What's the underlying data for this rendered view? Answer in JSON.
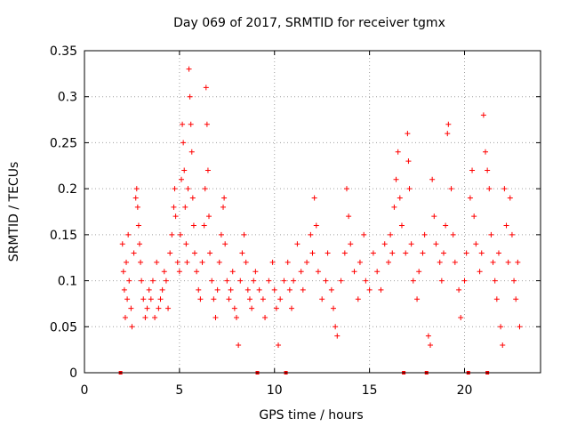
{
  "chart_data": {
    "type": "scatter",
    "title": "Day 069 of 2017, SRMTID for receiver tgmx",
    "xlabel": "GPS time / hours",
    "ylabel": "SRMTID / TECUs",
    "xlim": [
      0,
      24
    ],
    "ylim": [
      0,
      0.35
    ],
    "xticks": [
      0,
      5,
      10,
      15,
      20
    ],
    "xtick_labels": [
      "0",
      "5",
      "10",
      "15",
      "20"
    ],
    "yticks": [
      0,
      0.05,
      0.1,
      0.15,
      0.2,
      0.25,
      0.3,
      0.35
    ],
    "ytick_labels": [
      "0",
      "0.05",
      "0.1",
      "0.15",
      "0.2",
      "0.25",
      "0.3",
      "0.35"
    ],
    "grid": true,
    "marker": "+",
    "color": "#ff0000",
    "data_gap_markers_x": [
      1.9,
      9.1,
      10.6,
      16.8,
      18.0,
      20.2,
      21.2
    ],
    "series": [
      {
        "name": "SRMTID",
        "points": [
          [
            2.0,
            0.14
          ],
          [
            2.05,
            0.11
          ],
          [
            2.1,
            0.09
          ],
          [
            2.15,
            0.06
          ],
          [
            2.2,
            0.12
          ],
          [
            2.25,
            0.08
          ],
          [
            2.3,
            0.15
          ],
          [
            2.35,
            0.1
          ],
          [
            2.45,
            0.07
          ],
          [
            2.5,
            0.05
          ],
          [
            2.6,
            0.13
          ],
          [
            2.7,
            0.19
          ],
          [
            2.75,
            0.2
          ],
          [
            2.8,
            0.18
          ],
          [
            2.85,
            0.16
          ],
          [
            2.9,
            0.14
          ],
          [
            2.95,
            0.12
          ],
          [
            3.0,
            0.1
          ],
          [
            3.1,
            0.08
          ],
          [
            3.2,
            0.06
          ],
          [
            3.3,
            0.07
          ],
          [
            3.4,
            0.09
          ],
          [
            3.5,
            0.08
          ],
          [
            3.6,
            0.1
          ],
          [
            3.7,
            0.06
          ],
          [
            3.8,
            0.12
          ],
          [
            3.9,
            0.07
          ],
          [
            4.0,
            0.08
          ],
          [
            4.1,
            0.09
          ],
          [
            4.2,
            0.11
          ],
          [
            4.3,
            0.1
          ],
          [
            4.4,
            0.07
          ],
          [
            4.5,
            0.13
          ],
          [
            4.6,
            0.15
          ],
          [
            4.7,
            0.18
          ],
          [
            4.75,
            0.2
          ],
          [
            4.8,
            0.17
          ],
          [
            4.9,
            0.12
          ],
          [
            5.0,
            0.11
          ],
          [
            5.05,
            0.15
          ],
          [
            5.1,
            0.21
          ],
          [
            5.15,
            0.27
          ],
          [
            5.2,
            0.25
          ],
          [
            5.25,
            0.22
          ],
          [
            5.3,
            0.18
          ],
          [
            5.35,
            0.14
          ],
          [
            5.4,
            0.12
          ],
          [
            5.45,
            0.2
          ],
          [
            5.5,
            0.33
          ],
          [
            5.55,
            0.3
          ],
          [
            5.6,
            0.27
          ],
          [
            5.65,
            0.24
          ],
          [
            5.7,
            0.19
          ],
          [
            5.75,
            0.16
          ],
          [
            5.8,
            0.13
          ],
          [
            5.9,
            0.11
          ],
          [
            6.0,
            0.09
          ],
          [
            6.1,
            0.08
          ],
          [
            6.2,
            0.12
          ],
          [
            6.3,
            0.16
          ],
          [
            6.35,
            0.2
          ],
          [
            6.4,
            0.31
          ],
          [
            6.45,
            0.27
          ],
          [
            6.5,
            0.22
          ],
          [
            6.55,
            0.17
          ],
          [
            6.6,
            0.13
          ],
          [
            6.7,
            0.1
          ],
          [
            6.8,
            0.08
          ],
          [
            6.9,
            0.06
          ],
          [
            7.0,
            0.09
          ],
          [
            7.1,
            0.12
          ],
          [
            7.2,
            0.15
          ],
          [
            7.3,
            0.18
          ],
          [
            7.35,
            0.19
          ],
          [
            7.4,
            0.14
          ],
          [
            7.5,
            0.1
          ],
          [
            7.6,
            0.08
          ],
          [
            7.7,
            0.09
          ],
          [
            7.8,
            0.11
          ],
          [
            7.9,
            0.07
          ],
          [
            8.0,
            0.06
          ],
          [
            8.1,
            0.03
          ],
          [
            8.2,
            0.1
          ],
          [
            8.3,
            0.13
          ],
          [
            8.4,
            0.15
          ],
          [
            8.5,
            0.12
          ],
          [
            8.6,
            0.09
          ],
          [
            8.7,
            0.08
          ],
          [
            8.8,
            0.07
          ],
          [
            8.9,
            0.1
          ],
          [
            9.0,
            0.11
          ],
          [
            9.2,
            0.09
          ],
          [
            9.4,
            0.08
          ],
          [
            9.5,
            0.06
          ],
          [
            9.7,
            0.1
          ],
          [
            9.9,
            0.12
          ],
          [
            10.0,
            0.09
          ],
          [
            10.1,
            0.07
          ],
          [
            10.2,
            0.03
          ],
          [
            10.3,
            0.08
          ],
          [
            10.5,
            0.1
          ],
          [
            10.7,
            0.12
          ],
          [
            10.8,
            0.09
          ],
          [
            10.9,
            0.07
          ],
          [
            11.0,
            0.1
          ],
          [
            11.2,
            0.14
          ],
          [
            11.4,
            0.11
          ],
          [
            11.5,
            0.09
          ],
          [
            11.7,
            0.12
          ],
          [
            11.9,
            0.15
          ],
          [
            12.0,
            0.13
          ],
          [
            12.1,
            0.19
          ],
          [
            12.2,
            0.16
          ],
          [
            12.3,
            0.11
          ],
          [
            12.5,
            0.08
          ],
          [
            12.7,
            0.1
          ],
          [
            12.8,
            0.13
          ],
          [
            13.0,
            0.09
          ],
          [
            13.1,
            0.07
          ],
          [
            13.2,
            0.05
          ],
          [
            13.3,
            0.04
          ],
          [
            13.5,
            0.1
          ],
          [
            13.7,
            0.13
          ],
          [
            13.8,
            0.2
          ],
          [
            13.9,
            0.17
          ],
          [
            14.0,
            0.14
          ],
          [
            14.2,
            0.11
          ],
          [
            14.4,
            0.08
          ],
          [
            14.5,
            0.12
          ],
          [
            14.7,
            0.15
          ],
          [
            14.8,
            0.1
          ],
          [
            15.0,
            0.09
          ],
          [
            15.2,
            0.13
          ],
          [
            15.4,
            0.11
          ],
          [
            15.6,
            0.09
          ],
          [
            15.8,
            0.14
          ],
          [
            16.0,
            0.12
          ],
          [
            16.1,
            0.15
          ],
          [
            16.2,
            0.13
          ],
          [
            16.3,
            0.18
          ],
          [
            16.4,
            0.21
          ],
          [
            16.5,
            0.24
          ],
          [
            16.6,
            0.19
          ],
          [
            16.7,
            0.16
          ],
          [
            16.9,
            0.13
          ],
          [
            17.0,
            0.26
          ],
          [
            17.05,
            0.23
          ],
          [
            17.1,
            0.2
          ],
          [
            17.2,
            0.14
          ],
          [
            17.3,
            0.1
          ],
          [
            17.5,
            0.08
          ],
          [
            17.6,
            0.11
          ],
          [
            17.8,
            0.13
          ],
          [
            17.9,
            0.15
          ],
          [
            18.1,
            0.04
          ],
          [
            18.2,
            0.03
          ],
          [
            18.3,
            0.21
          ],
          [
            18.4,
            0.17
          ],
          [
            18.5,
            0.14
          ],
          [
            18.7,
            0.12
          ],
          [
            18.8,
            0.1
          ],
          [
            18.9,
            0.13
          ],
          [
            19.0,
            0.16
          ],
          [
            19.1,
            0.26
          ],
          [
            19.15,
            0.27
          ],
          [
            19.3,
            0.2
          ],
          [
            19.4,
            0.15
          ],
          [
            19.5,
            0.12
          ],
          [
            19.7,
            0.09
          ],
          [
            19.8,
            0.06
          ],
          [
            20.0,
            0.1
          ],
          [
            20.1,
            0.13
          ],
          [
            20.3,
            0.19
          ],
          [
            20.4,
            0.22
          ],
          [
            20.5,
            0.17
          ],
          [
            20.6,
            0.14
          ],
          [
            20.8,
            0.11
          ],
          [
            20.9,
            0.13
          ],
          [
            21.0,
            0.28
          ],
          [
            21.1,
            0.24
          ],
          [
            21.2,
            0.22
          ],
          [
            21.3,
            0.2
          ],
          [
            21.4,
            0.15
          ],
          [
            21.5,
            0.12
          ],
          [
            21.6,
            0.1
          ],
          [
            21.7,
            0.08
          ],
          [
            21.8,
            0.13
          ],
          [
            21.9,
            0.05
          ],
          [
            22.0,
            0.03
          ],
          [
            22.1,
            0.2
          ],
          [
            22.2,
            0.16
          ],
          [
            22.3,
            0.12
          ],
          [
            22.4,
            0.19
          ],
          [
            22.5,
            0.15
          ],
          [
            22.6,
            0.1
          ],
          [
            22.7,
            0.08
          ],
          [
            22.8,
            0.12
          ],
          [
            22.9,
            0.05
          ]
        ]
      }
    ]
  }
}
